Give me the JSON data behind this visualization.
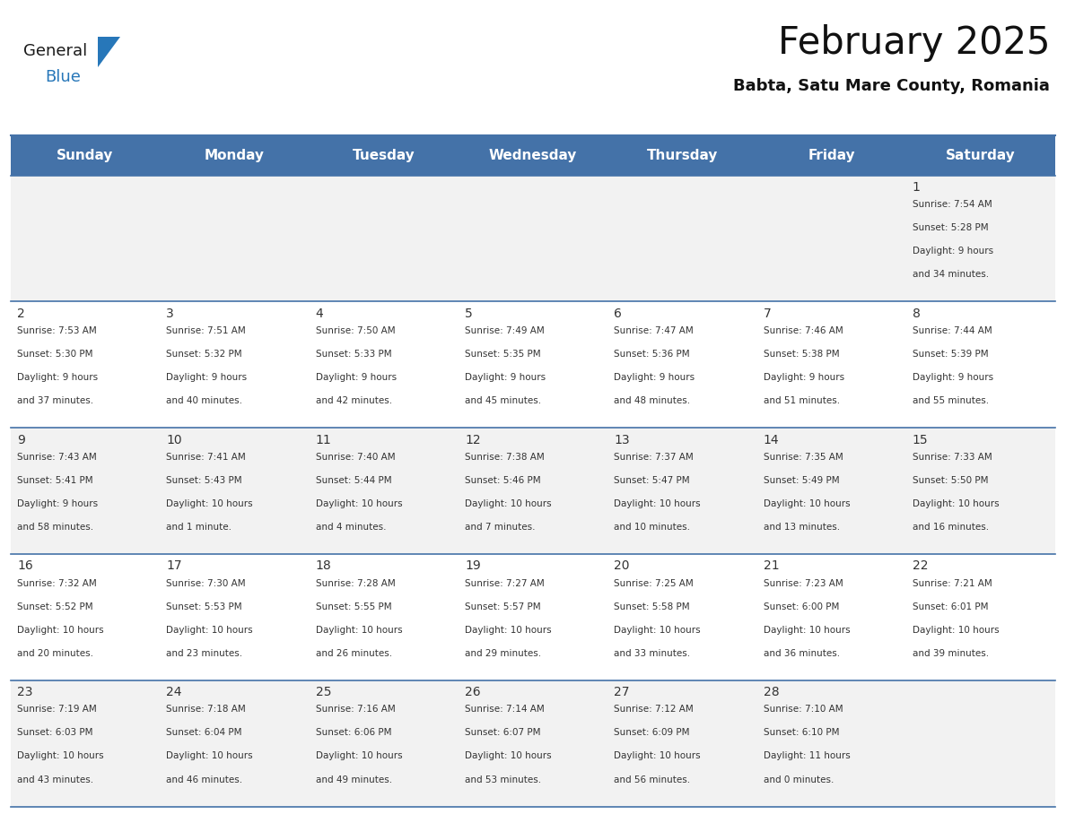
{
  "title": "February 2025",
  "subtitle": "Babta, Satu Mare County, Romania",
  "header_color": "#4472A8",
  "header_text_color": "#FFFFFF",
  "day_names": [
    "Sunday",
    "Monday",
    "Tuesday",
    "Wednesday",
    "Thursday",
    "Friday",
    "Saturday"
  ],
  "alt_row_color": "#F2F2F2",
  "white_color": "#FFFFFF",
  "border_color": "#4472A8",
  "text_color": "#333333",
  "day_num_color": "#333333",
  "calendar": [
    [
      null,
      null,
      null,
      null,
      null,
      null,
      {
        "day": 1,
        "sunrise": "7:54 AM",
        "sunset": "5:28 PM",
        "daylight": "9 hours and 34 minutes."
      }
    ],
    [
      {
        "day": 2,
        "sunrise": "7:53 AM",
        "sunset": "5:30 PM",
        "daylight": "9 hours and 37 minutes."
      },
      {
        "day": 3,
        "sunrise": "7:51 AM",
        "sunset": "5:32 PM",
        "daylight": "9 hours and 40 minutes."
      },
      {
        "day": 4,
        "sunrise": "7:50 AM",
        "sunset": "5:33 PM",
        "daylight": "9 hours and 42 minutes."
      },
      {
        "day": 5,
        "sunrise": "7:49 AM",
        "sunset": "5:35 PM",
        "daylight": "9 hours and 45 minutes."
      },
      {
        "day": 6,
        "sunrise": "7:47 AM",
        "sunset": "5:36 PM",
        "daylight": "9 hours and 48 minutes."
      },
      {
        "day": 7,
        "sunrise": "7:46 AM",
        "sunset": "5:38 PM",
        "daylight": "9 hours and 51 minutes."
      },
      {
        "day": 8,
        "sunrise": "7:44 AM",
        "sunset": "5:39 PM",
        "daylight": "9 hours and 55 minutes."
      }
    ],
    [
      {
        "day": 9,
        "sunrise": "7:43 AM",
        "sunset": "5:41 PM",
        "daylight": "9 hours and 58 minutes."
      },
      {
        "day": 10,
        "sunrise": "7:41 AM",
        "sunset": "5:43 PM",
        "daylight": "10 hours and 1 minute."
      },
      {
        "day": 11,
        "sunrise": "7:40 AM",
        "sunset": "5:44 PM",
        "daylight": "10 hours and 4 minutes."
      },
      {
        "day": 12,
        "sunrise": "7:38 AM",
        "sunset": "5:46 PM",
        "daylight": "10 hours and 7 minutes."
      },
      {
        "day": 13,
        "sunrise": "7:37 AM",
        "sunset": "5:47 PM",
        "daylight": "10 hours and 10 minutes."
      },
      {
        "day": 14,
        "sunrise": "7:35 AM",
        "sunset": "5:49 PM",
        "daylight": "10 hours and 13 minutes."
      },
      {
        "day": 15,
        "sunrise": "7:33 AM",
        "sunset": "5:50 PM",
        "daylight": "10 hours and 16 minutes."
      }
    ],
    [
      {
        "day": 16,
        "sunrise": "7:32 AM",
        "sunset": "5:52 PM",
        "daylight": "10 hours and 20 minutes."
      },
      {
        "day": 17,
        "sunrise": "7:30 AM",
        "sunset": "5:53 PM",
        "daylight": "10 hours and 23 minutes."
      },
      {
        "day": 18,
        "sunrise": "7:28 AM",
        "sunset": "5:55 PM",
        "daylight": "10 hours and 26 minutes."
      },
      {
        "day": 19,
        "sunrise": "7:27 AM",
        "sunset": "5:57 PM",
        "daylight": "10 hours and 29 minutes."
      },
      {
        "day": 20,
        "sunrise": "7:25 AM",
        "sunset": "5:58 PM",
        "daylight": "10 hours and 33 minutes."
      },
      {
        "day": 21,
        "sunrise": "7:23 AM",
        "sunset": "6:00 PM",
        "daylight": "10 hours and 36 minutes."
      },
      {
        "day": 22,
        "sunrise": "7:21 AM",
        "sunset": "6:01 PM",
        "daylight": "10 hours and 39 minutes."
      }
    ],
    [
      {
        "day": 23,
        "sunrise": "7:19 AM",
        "sunset": "6:03 PM",
        "daylight": "10 hours and 43 minutes."
      },
      {
        "day": 24,
        "sunrise": "7:18 AM",
        "sunset": "6:04 PM",
        "daylight": "10 hours and 46 minutes."
      },
      {
        "day": 25,
        "sunrise": "7:16 AM",
        "sunset": "6:06 PM",
        "daylight": "10 hours and 49 minutes."
      },
      {
        "day": 26,
        "sunrise": "7:14 AM",
        "sunset": "6:07 PM",
        "daylight": "10 hours and 53 minutes."
      },
      {
        "day": 27,
        "sunrise": "7:12 AM",
        "sunset": "6:09 PM",
        "daylight": "10 hours and 56 minutes."
      },
      {
        "day": 28,
        "sunrise": "7:10 AM",
        "sunset": "6:10 PM",
        "daylight": "11 hours and 0 minutes."
      },
      null
    ]
  ],
  "logo_general_color": "#1a1a1a",
  "logo_blue_color": "#2777b9"
}
